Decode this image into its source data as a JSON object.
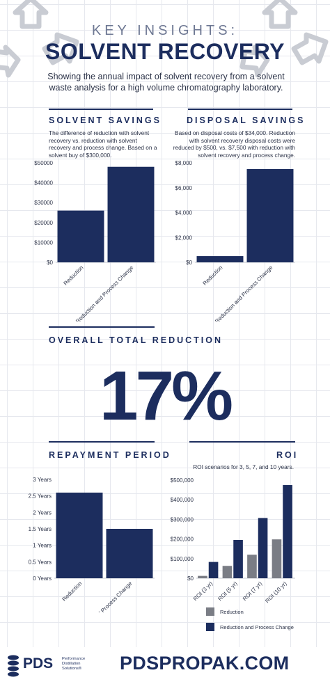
{
  "header": {
    "kicker": "KEY INSIGHTS:",
    "title": "SOLVENT RECOVERY",
    "intro": "Showing the annual impact of solvent recovery from a solvent waste analysis for a high volume chromatography laboratory."
  },
  "colors": {
    "navy": "#1c2d5e",
    "gray": "#7a7d85",
    "text": "#2c3348"
  },
  "sections": {
    "solvent": {
      "heading": "SOLVENT SAVINGS",
      "description": "The difference of reduction with solvent recovery vs. reduction with solvent recovery and process change. Based on a solvent buy of $300,000."
    },
    "disposal": {
      "heading": "DISPOSAL SAVINGS",
      "description": "Based on disposal costs of $34,000. Reduction with solvent recovery disposal costs were reduced by $500, vs. $7,500 with reduction with solvent recovery and process change."
    },
    "overall": {
      "heading": "OVERALL TOTAL REDUCTION",
      "value": "17%"
    },
    "repayment": {
      "heading": "REPAYMENT PERIOD"
    },
    "roi": {
      "heading": "ROI",
      "description": "ROI scenarios for 3, 5, 7, and 10 years."
    }
  },
  "chart_data": [
    {
      "id": "solvent",
      "type": "bar",
      "categories": [
        "Reduction",
        "Reduction and Process Change"
      ],
      "values": [
        26000,
        48000
      ],
      "ticks": [
        "$0",
        "$10000",
        "$20000",
        "$30000",
        "$40000",
        "$50000"
      ],
      "ylim": [
        0,
        50000
      ]
    },
    {
      "id": "disposal",
      "type": "bar",
      "categories": [
        "Reduction",
        "Reduction and Process Change"
      ],
      "values": [
        500,
        7500
      ],
      "ticks": [
        "$0",
        "$2,000",
        "$4,000",
        "$6,000",
        "$8,000"
      ],
      "ylim": [
        0,
        8000
      ]
    },
    {
      "id": "repayment",
      "type": "bar",
      "categories": [
        "Reduction",
        "Reduction and Process Change"
      ],
      "values": [
        2.6,
        1.5
      ],
      "ticks": [
        "0 Years",
        "0.5 Years",
        "1 Years",
        "1.5 Years",
        "2 Years",
        "2.5 Years",
        "3 Years"
      ],
      "ylim": [
        0,
        3
      ]
    },
    {
      "id": "roi",
      "type": "bar",
      "categories": [
        "ROI (3 yr)",
        "ROI (5 yr)",
        "ROI (7 yr)",
        "ROI (10 yr)"
      ],
      "series": [
        {
          "name": "Reduction",
          "values": [
            12000,
            63000,
            120000,
            198000
          ]
        },
        {
          "name": "Reduction and Process Change",
          "values": [
            83000,
            195000,
            307000,
            475000
          ]
        }
      ],
      "ticks": [
        "$0",
        "$100,000",
        "$200,000",
        "$300,000",
        "$400,000",
        "$500,000"
      ],
      "ylim": [
        0,
        500000
      ],
      "legend": "bottom"
    }
  ],
  "footer": {
    "brand": "PDS",
    "brand_sub_1": "Performance",
    "brand_sub_2": "Distillation",
    "brand_sub_3": "Solutions®",
    "website": "PDSPROPAK.COM"
  },
  "icons": [
    "recycle-icon",
    "pds-logo-icon"
  ]
}
